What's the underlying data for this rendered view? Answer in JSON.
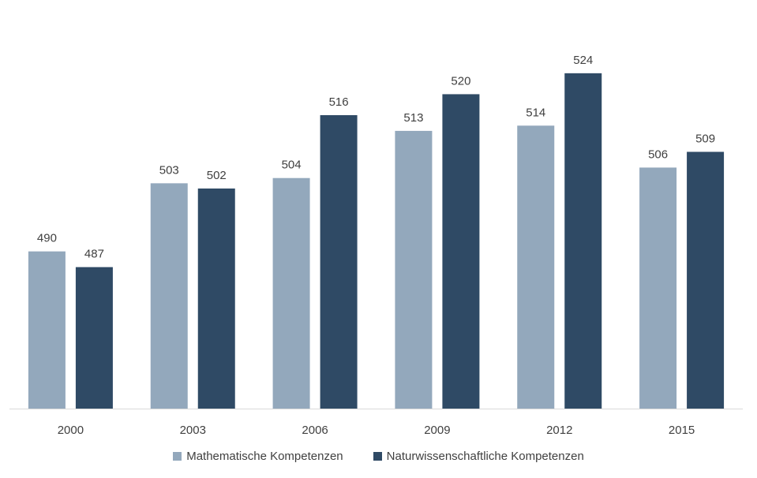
{
  "chart_data": {
    "type": "bar",
    "categories": [
      "2000",
      "2003",
      "2006",
      "2009",
      "2012",
      "2015"
    ],
    "series": [
      {
        "name": "Mathematische Kompetenzen",
        "values": [
          490,
          503,
          504,
          513,
          514,
          506
        ],
        "color": "#93a8bc"
      },
      {
        "name": "Naturwissenschaftliche Kompetenzen",
        "values": [
          487,
          502,
          516,
          520,
          524,
          509
        ],
        "color": "#2f4a65"
      }
    ],
    "ylim": [
      460,
      530
    ],
    "grid": false,
    "legend_position": "bottom"
  }
}
